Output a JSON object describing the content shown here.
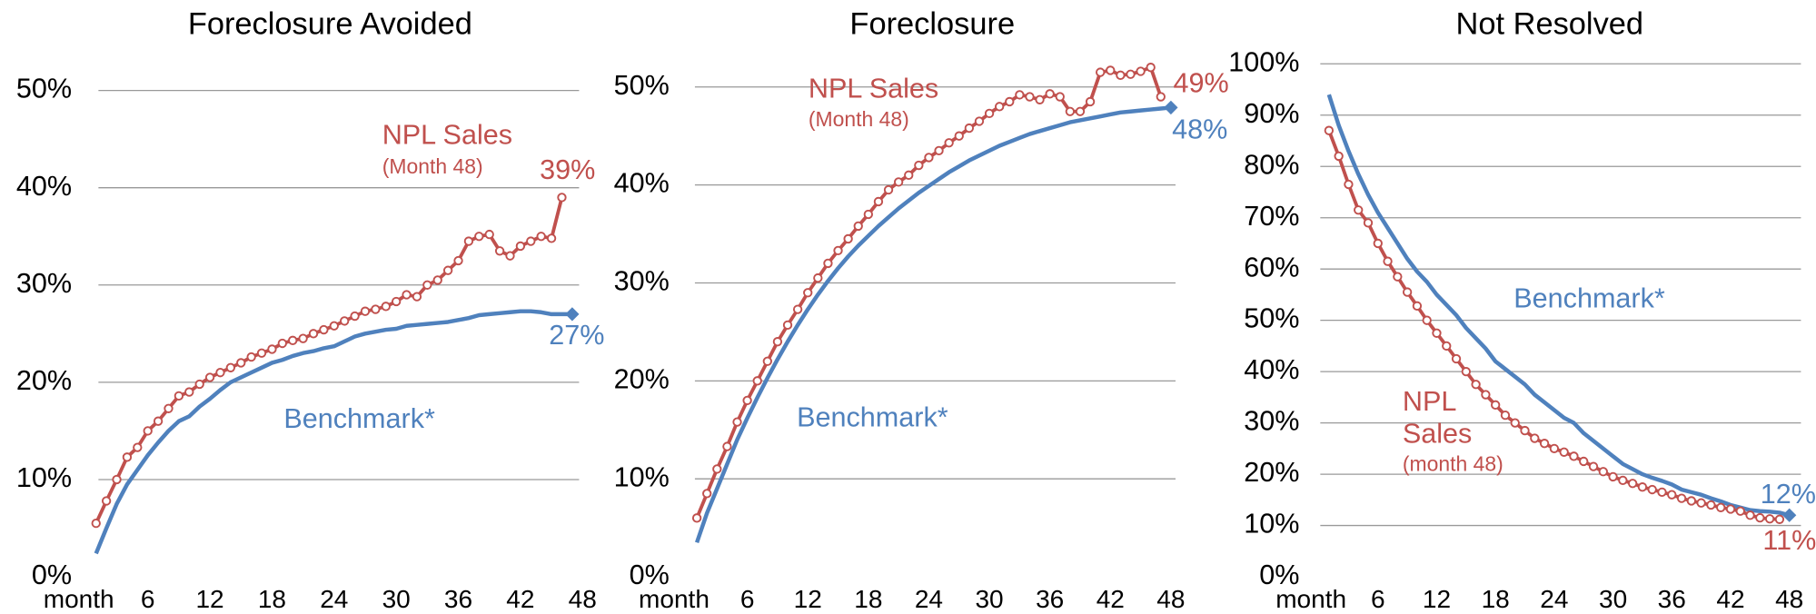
{
  "chart_data": [
    {
      "type": "line",
      "title": "Foreclosure Avoided",
      "xlabel": "month",
      "x": [
        1,
        2,
        3,
        4,
        5,
        6,
        7,
        8,
        9,
        10,
        11,
        12,
        13,
        14,
        15,
        16,
        17,
        18,
        19,
        20,
        21,
        22,
        23,
        24,
        25,
        26,
        27,
        28,
        29,
        30,
        31,
        32,
        33,
        34,
        35,
        36,
        37,
        38,
        39,
        40,
        41,
        42,
        43,
        44,
        45,
        46,
        47
      ],
      "xlim": [
        0,
        48
      ],
      "xticks": [
        6,
        12,
        18,
        24,
        30,
        36,
        42,
        48
      ],
      "ylim": [
        0,
        50
      ],
      "yticks": [
        {
          "value": 0,
          "label": "0%"
        },
        {
          "value": 10,
          "label": "10%"
        },
        {
          "value": 20,
          "label": "20%"
        },
        {
          "value": 30,
          "label": "30%"
        },
        {
          "value": 40,
          "label": "40%"
        },
        {
          "value": 50,
          "label": "50%"
        }
      ],
      "grid": true,
      "series": [
        {
          "color": "#c0504d",
          "markers": true,
          "end_label": "39%",
          "values": [
            5.5,
            7.8,
            10,
            12.3,
            13.3,
            15,
            16,
            17.3,
            18.6,
            19,
            19.8,
            20.5,
            21,
            21.5,
            22,
            22.6,
            23,
            23.4,
            24,
            24.3,
            24.5,
            25,
            25.4,
            25.8,
            26.3,
            26.8,
            27.3,
            27.5,
            27.8,
            28.3,
            29,
            28.8,
            30,
            30.5,
            31.5,
            32.5,
            34.5,
            35,
            35.2,
            33.5,
            33,
            34,
            34.5,
            35,
            34.8,
            39,
            null
          ]
        },
        {
          "color": "#4f81bd",
          "markers": false,
          "end_label": "27%",
          "values": [
            2.4,
            5,
            7.5,
            9.5,
            11,
            12.5,
            13.8,
            15,
            16,
            16.5,
            17.5,
            18.3,
            19.2,
            20,
            20.5,
            21,
            21.5,
            22,
            22.3,
            22.7,
            23,
            23.2,
            23.5,
            23.7,
            24.2,
            24.7,
            25,
            25.2,
            25.4,
            25.5,
            25.8,
            25.9,
            26,
            26.1,
            26.2,
            26.4,
            26.6,
            26.9,
            27,
            27.1,
            27.2,
            27.3,
            27.3,
            27.2,
            27,
            27,
            27
          ]
        }
      ],
      "annotations": [
        {
          "text": "NPL Sales",
          "color": "#c0504d"
        },
        {
          "text": "(Month 48)",
          "color": "#c0504d"
        },
        {
          "text": "Benchmark*",
          "color": "#4f81bd"
        }
      ]
    },
    {
      "type": "line",
      "title": "Foreclosure",
      "xlabel": "month",
      "x": [
        1,
        2,
        3,
        4,
        5,
        6,
        7,
        8,
        9,
        10,
        11,
        12,
        13,
        14,
        15,
        16,
        17,
        18,
        19,
        20,
        21,
        22,
        23,
        24,
        25,
        26,
        27,
        28,
        29,
        30,
        31,
        32,
        33,
        34,
        35,
        36,
        37,
        38,
        39,
        40,
        41,
        42,
        43,
        44,
        45,
        46,
        47,
        48
      ],
      "xlim": [
        0,
        48
      ],
      "xticks": [
        6,
        12,
        18,
        24,
        30,
        36,
        42,
        48
      ],
      "ylim": [
        0,
        50
      ],
      "yticks": [
        {
          "value": 0,
          "label": "0%"
        },
        {
          "value": 10,
          "label": "10%"
        },
        {
          "value": 20,
          "label": "20%"
        },
        {
          "value": 30,
          "label": "30%"
        },
        {
          "value": 40,
          "label": "40%"
        },
        {
          "value": 50,
          "label": "50%"
        }
      ],
      "grid": true,
      "series": [
        {
          "color": "#c0504d",
          "markers": true,
          "end_label": "49%",
          "values": [
            6,
            8.5,
            11,
            13.3,
            15.8,
            18,
            20,
            22,
            24,
            25.7,
            27.3,
            29,
            30.5,
            32,
            33.3,
            34.5,
            35.8,
            37,
            38.3,
            39.5,
            40.3,
            41,
            42,
            42.8,
            43.5,
            44.3,
            45,
            45.8,
            46.5,
            47.3,
            48,
            48.5,
            49.2,
            49,
            48.7,
            49.3,
            49,
            47.5,
            47.5,
            48.5,
            51.5,
            51.7,
            51.2,
            51.3,
            51.6,
            52,
            49,
            null
          ]
        },
        {
          "color": "#4f81bd",
          "markers": false,
          "end_label": "48%",
          "values": [
            3.5,
            6.5,
            9,
            11.5,
            14,
            16.2,
            18.3,
            20.3,
            22.2,
            24,
            25.7,
            27.3,
            28.8,
            30.2,
            31.5,
            32.7,
            33.8,
            34.8,
            35.8,
            36.7,
            37.6,
            38.4,
            39.2,
            39.9,
            40.6,
            41.3,
            41.9,
            42.5,
            43,
            43.5,
            44,
            44.4,
            44.8,
            45.2,
            45.5,
            45.8,
            46.1,
            46.4,
            46.6,
            46.8,
            47,
            47.2,
            47.4,
            47.5,
            47.6,
            47.7,
            47.8,
            47.9
          ]
        }
      ],
      "annotations": [
        {
          "text": "NPL Sales",
          "color": "#c0504d"
        },
        {
          "text": "(Month 48)",
          "color": "#c0504d"
        },
        {
          "text": "Benchmark*",
          "color": "#4f81bd"
        }
      ]
    },
    {
      "type": "line",
      "title": "Not Resolved",
      "xlabel": "month",
      "x": [
        1,
        2,
        3,
        4,
        5,
        6,
        7,
        8,
        9,
        10,
        11,
        12,
        13,
        14,
        15,
        16,
        17,
        18,
        19,
        20,
        21,
        22,
        23,
        24,
        25,
        26,
        27,
        28,
        29,
        30,
        31,
        32,
        33,
        34,
        35,
        36,
        37,
        38,
        39,
        40,
        41,
        42,
        43,
        44,
        45,
        46,
        47,
        48
      ],
      "xlim": [
        0,
        48
      ],
      "xticks": [
        6,
        12,
        18,
        24,
        30,
        36,
        42,
        48
      ],
      "ylim": [
        0,
        100
      ],
      "yticks": [
        {
          "value": 0,
          "label": "0%"
        },
        {
          "value": 10,
          "label": "10%"
        },
        {
          "value": 20,
          "label": "20%"
        },
        {
          "value": 30,
          "label": "30%"
        },
        {
          "value": 40,
          "label": "40%"
        },
        {
          "value": 50,
          "label": "50%"
        },
        {
          "value": 60,
          "label": "60%"
        },
        {
          "value": 70,
          "label": "70%"
        },
        {
          "value": 80,
          "label": "80%"
        },
        {
          "value": 90,
          "label": "90%"
        },
        {
          "value": 100,
          "label": "100%"
        }
      ],
      "grid": true,
      "series": [
        {
          "color": "#c0504d",
          "markers": true,
          "end_label": "11%",
          "values": [
            87,
            82,
            76.5,
            71.5,
            69,
            65,
            61.5,
            58.5,
            55.5,
            52.8,
            50,
            47.5,
            45,
            42.5,
            40,
            37.5,
            35.5,
            33.5,
            31.5,
            30,
            28.5,
            27,
            26,
            25,
            24.3,
            23.5,
            22.5,
            21.5,
            20.5,
            19.5,
            18.8,
            18.2,
            17.5,
            17,
            16.5,
            16,
            15.3,
            14.8,
            14.4,
            14,
            13.5,
            13.2,
            12.8,
            12,
            11.5,
            11.3,
            11.2,
            null
          ]
        },
        {
          "color": "#4f81bd",
          "markers": false,
          "end_label": "12%",
          "values": [
            94,
            88,
            83,
            78.5,
            74.5,
            71,
            68,
            65,
            62,
            59.5,
            57.5,
            55,
            53,
            51,
            48.5,
            46.5,
            44.5,
            42,
            40.5,
            39,
            37.5,
            35.5,
            34,
            32.5,
            31,
            30,
            28,
            26.5,
            25,
            23.5,
            22,
            21,
            20,
            19.3,
            18.7,
            18,
            17,
            16.5,
            16,
            15.3,
            14.7,
            14,
            13.5,
            13,
            12.8,
            12.7,
            12.5,
            12
          ]
        }
      ],
      "annotations": [
        {
          "text": "Benchmark*",
          "color": "#4f81bd"
        },
        {
          "text": "NPL",
          "color": "#c0504d"
        },
        {
          "text": "Sales",
          "color": "#c0504d"
        },
        {
          "text": "(month 48)",
          "color": "#c0504d"
        }
      ]
    }
  ]
}
